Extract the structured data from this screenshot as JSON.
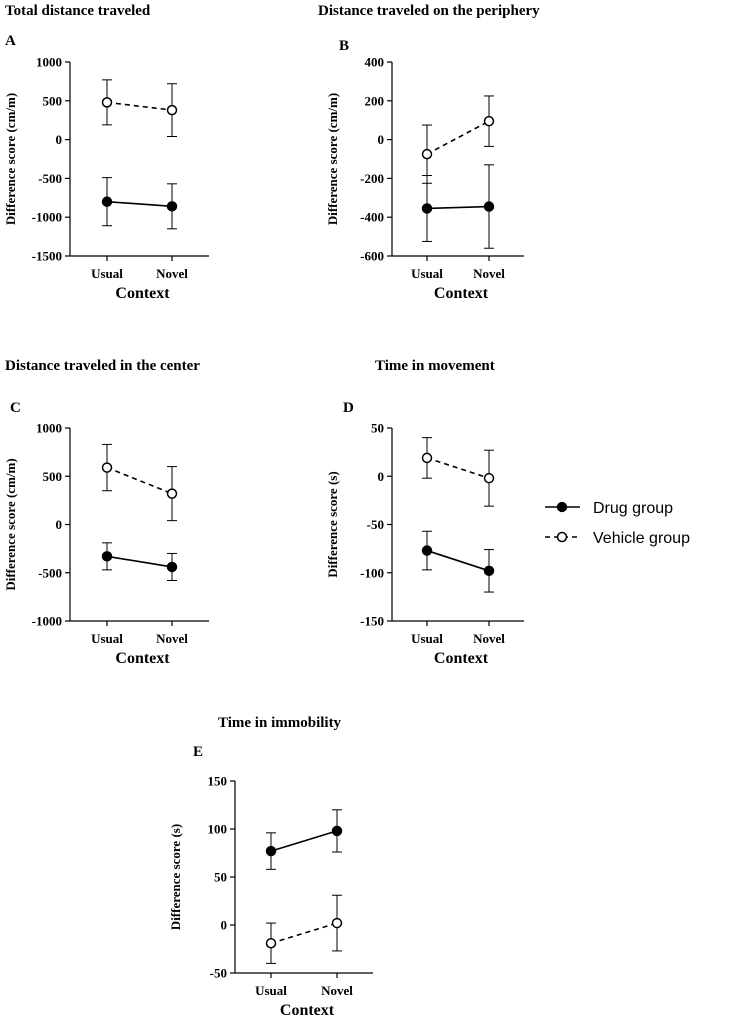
{
  "legend": {
    "items": [
      {
        "label": "Drug group",
        "style": "solid",
        "marker": "filled"
      },
      {
        "label": "Vehicle group",
        "style": "dashed",
        "marker": "open"
      }
    ]
  },
  "chart_data": [
    {
      "panel": "A",
      "type": "line",
      "title": "Total distance traveled",
      "xlabel": "Context",
      "ylabel": "Difference score (cm/m)",
      "categories": [
        "Usual",
        "Novel"
      ],
      "ylim": [
        -1500,
        1000
      ],
      "yticks": [
        1000,
        500,
        0,
        -500,
        -1000,
        -1500
      ],
      "series": [
        {
          "name": "Drug group",
          "values": [
            -800,
            -860
          ],
          "err": [
            310,
            290
          ]
        },
        {
          "name": "Vehicle group",
          "values": [
            480,
            380
          ],
          "err": [
            290,
            340
          ]
        }
      ]
    },
    {
      "panel": "B",
      "type": "line",
      "title": "Distance traveled on the periphery",
      "xlabel": "Context",
      "ylabel": "Difference score (cm/m)",
      "categories": [
        "Usual",
        "Novel"
      ],
      "ylim": [
        -600,
        400
      ],
      "yticks": [
        400,
        200,
        0,
        -200,
        -400,
        -600
      ],
      "series": [
        {
          "name": "Drug group",
          "values": [
            -355,
            -345
          ],
          "err": [
            170,
            215
          ]
        },
        {
          "name": "Vehicle group",
          "values": [
            -75,
            95
          ],
          "err": [
            150,
            130
          ]
        }
      ]
    },
    {
      "panel": "C",
      "type": "line",
      "title": "Distance traveled in the center",
      "xlabel": "Context",
      "ylabel": "Difference score (cm/m)",
      "categories": [
        "Usual",
        "Novel"
      ],
      "ylim": [
        -1000,
        1000
      ],
      "yticks": [
        1000,
        500,
        0,
        -500,
        -1000
      ],
      "series": [
        {
          "name": "Drug group",
          "values": [
            -330,
            -440
          ],
          "err": [
            140,
            140
          ]
        },
        {
          "name": "Vehicle group",
          "values": [
            590,
            320
          ],
          "err": [
            240,
            280
          ]
        }
      ]
    },
    {
      "panel": "D",
      "type": "line",
      "title": "Time in movement",
      "xlabel": "Context",
      "ylabel": "Difference score (s)",
      "categories": [
        "Usual",
        "Novel"
      ],
      "ylim": [
        -150,
        50
      ],
      "yticks": [
        50,
        0,
        -50,
        -100,
        -150
      ],
      "series": [
        {
          "name": "Drug group",
          "values": [
            -77,
            -98
          ],
          "err": [
            20,
            22
          ]
        },
        {
          "name": "Vehicle group",
          "values": [
            19,
            -2
          ],
          "err": [
            21,
            29
          ]
        }
      ]
    },
    {
      "panel": "E",
      "type": "line",
      "title": "Time in immobility",
      "xlabel": "Context",
      "ylabel": "Difference score (s)",
      "categories": [
        "Usual",
        "Novel"
      ],
      "ylim": [
        -50,
        150
      ],
      "yticks": [
        150,
        100,
        50,
        0,
        -50
      ],
      "series": [
        {
          "name": "Drug group",
          "values": [
            77,
            98
          ],
          "err": [
            19,
            22
          ]
        },
        {
          "name": "Vehicle group",
          "values": [
            -19,
            2
          ],
          "err": [
            21,
            29
          ]
        }
      ]
    }
  ]
}
